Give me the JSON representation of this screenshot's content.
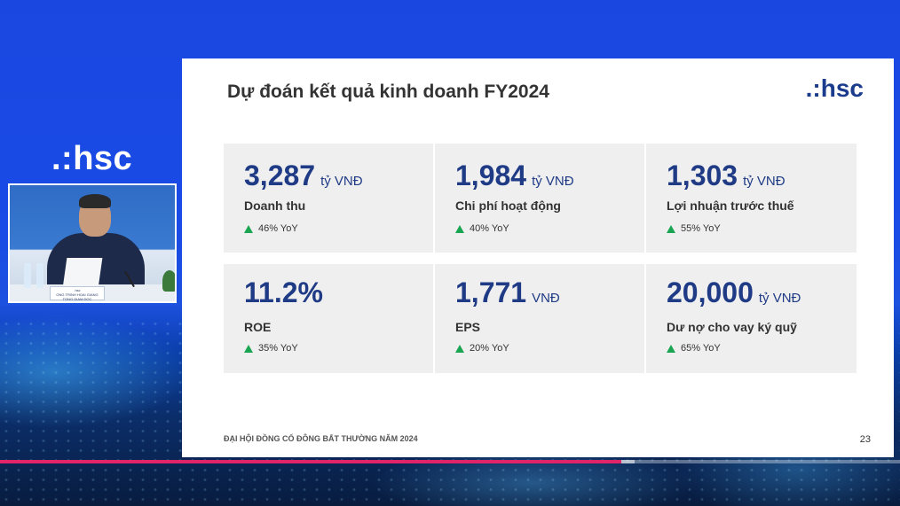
{
  "presenter": {
    "logo": ".:hsc",
    "nameplate_title": ".hsc",
    "nameplate_name": "ONG TRINH HOAI GIANG",
    "nameplate_role": "TONG GIAM DOC"
  },
  "slide": {
    "title": "Dự đoán kết quả kinh doanh FY2024",
    "logo": ".:hsc",
    "footer": "ĐẠI HỘI ĐỒNG CỔ ĐÔNG BẤT THƯỜNG NĂM 2024",
    "page_number": "23",
    "metrics": [
      {
        "value": "3,287",
        "unit": "tỷ VNĐ",
        "label": "Doanh thu",
        "yoy": "46% YoY"
      },
      {
        "value": "1,984",
        "unit": "tỷ VNĐ",
        "label": "Chi phí hoạt động",
        "yoy": "40% YoY"
      },
      {
        "value": "1,303",
        "unit": "tỷ VNĐ",
        "label": "Lợi nhuận trước thuế",
        "yoy": "55% YoY"
      },
      {
        "value": "11.2%",
        "unit": "",
        "label": "ROE",
        "yoy": "35% YoY"
      },
      {
        "value": "1,771",
        "unit": "VNĐ",
        "label": "EPS",
        "yoy": "20% YoY"
      },
      {
        "value": "20,000",
        "unit": "tỷ VNĐ",
        "label": "Dư nợ cho vay ký quỹ",
        "yoy": "65% YoY"
      }
    ]
  },
  "player": {
    "progress_fraction": 0.69,
    "buffered_fraction": 0.705,
    "accent_color": "#e0246a"
  },
  "colors": {
    "metric_blue": "#1f3b86",
    "up_arrow_green": "#1aa553"
  }
}
